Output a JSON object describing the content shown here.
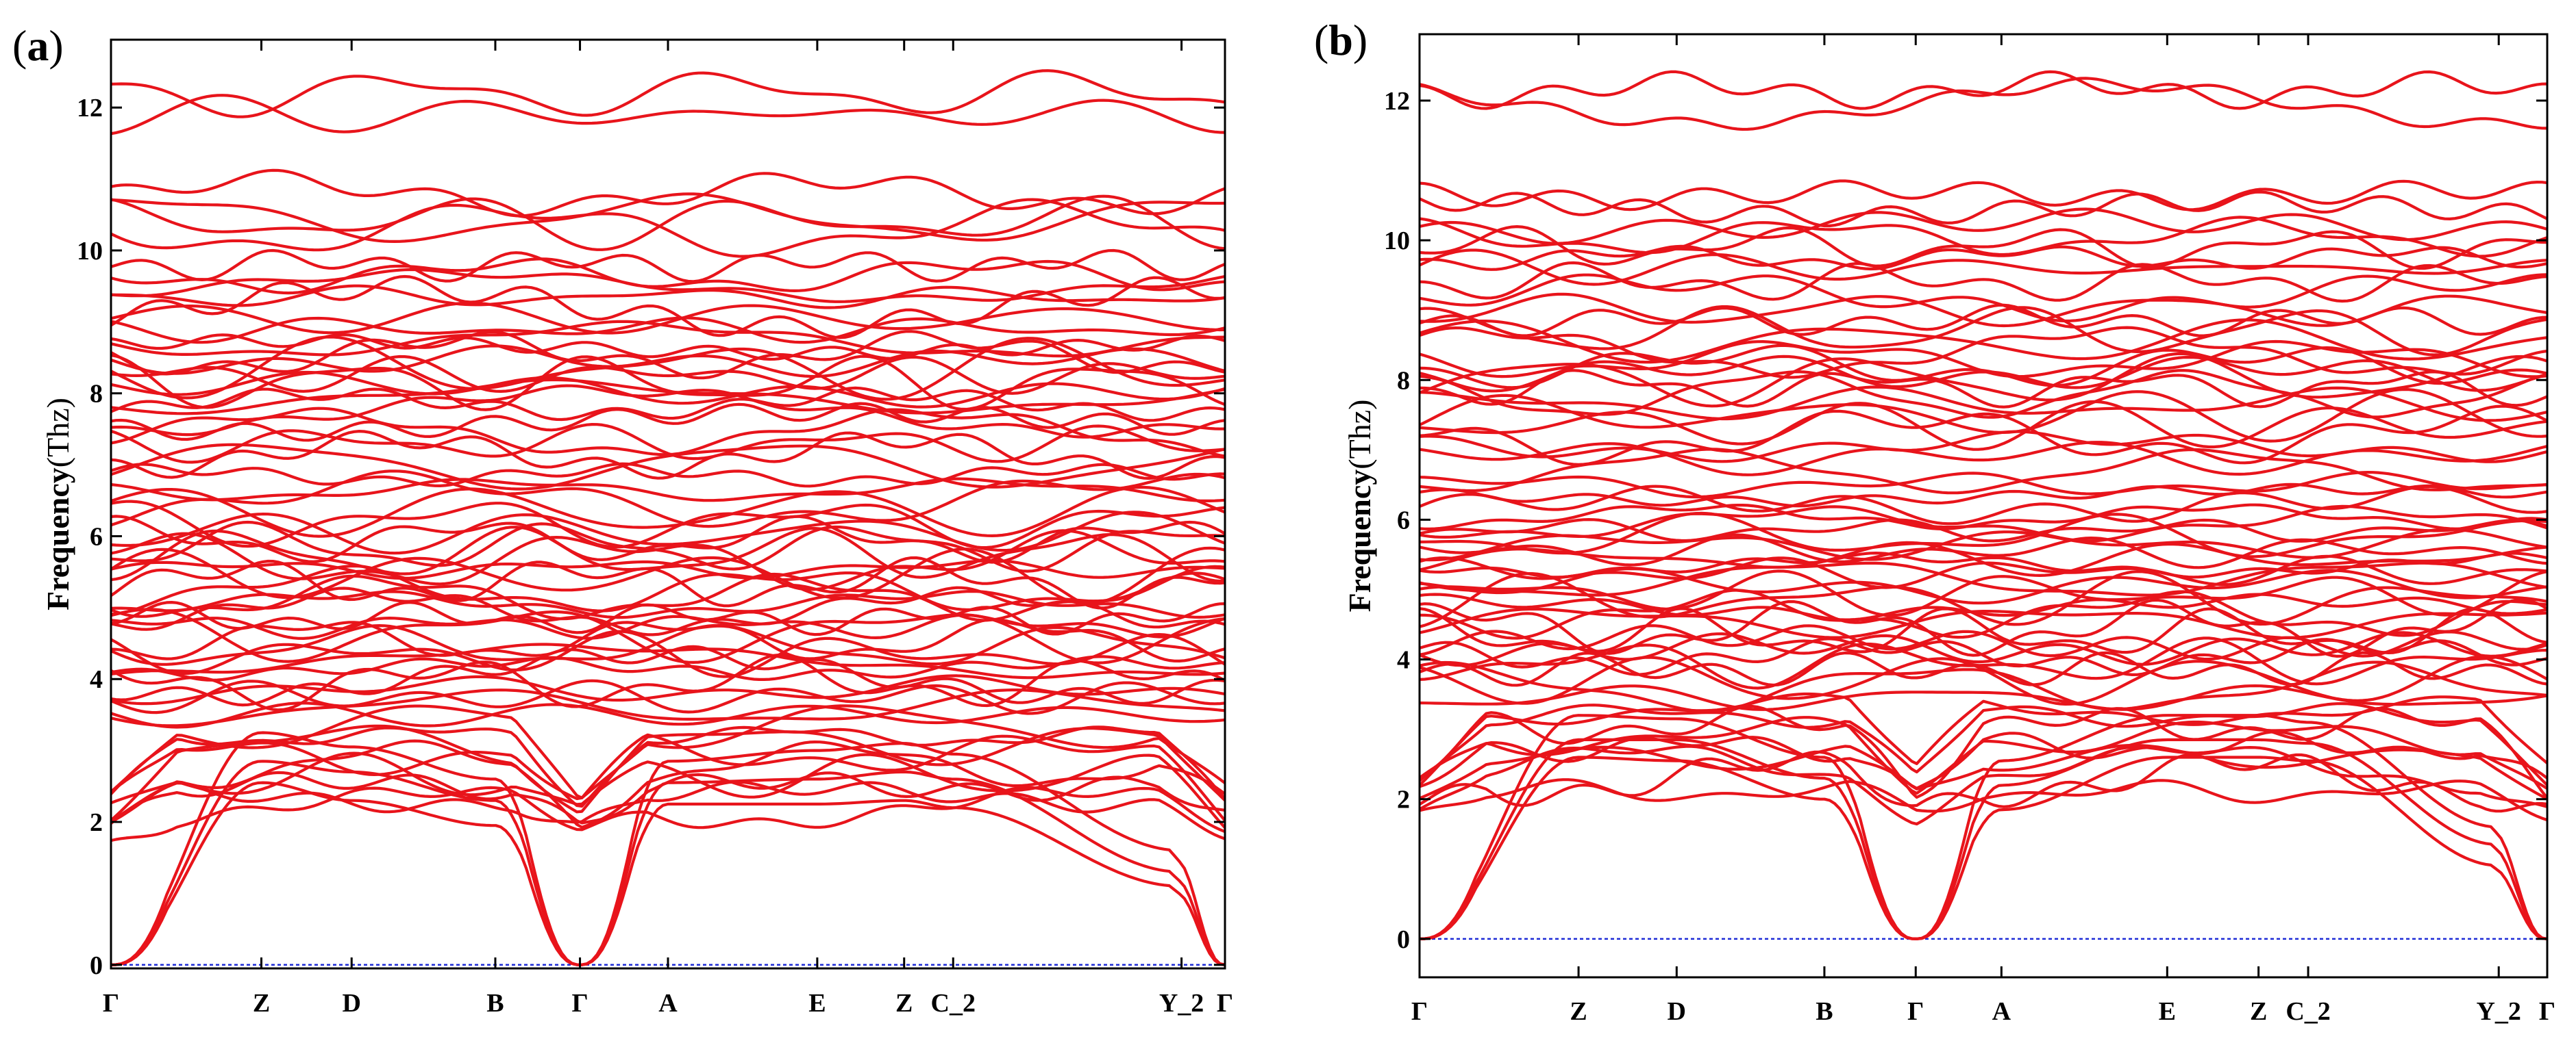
{
  "colors": {
    "band": "#e8141b",
    "zero_line": "#1d2bd6",
    "axis": "#000000"
  },
  "chart_data": [
    {
      "type": "line",
      "panel_label": "(a)",
      "panel_letter": "a",
      "title": "",
      "xlabel": "",
      "ylabel": "Frequency",
      "ylabel_unit": "(Thz)",
      "ylim": [
        -0.05,
        12.95
      ],
      "yticks": [
        0,
        2,
        4,
        6,
        8,
        10,
        12
      ],
      "kpoints": [
        {
          "label": "Γ",
          "x": 0.0
        },
        {
          "label": "Z",
          "x": 0.135
        },
        {
          "label": "D",
          "x": 0.216
        },
        {
          "label": "B",
          "x": 0.345
        },
        {
          "label": "Γ",
          "x": 0.421
        },
        {
          "label": "A",
          "x": 0.5
        },
        {
          "label": "E",
          "x": 0.634
        },
        {
          "label": "Z",
          "x": 0.712
        },
        {
          "label": "C_2",
          "x": 0.756
        },
        {
          "label": "Y_2",
          "x": 0.961
        },
        {
          "label": "Γ",
          "x": 1.0
        }
      ],
      "band_count": 82,
      "acoustic_at_kpoint": [
        [
          0.0,
          2.55,
          2.3,
          1.95,
          0.0,
          2.25,
          2.25,
          2.3,
          2.2,
          1.1,
          0.0
        ],
        [
          0.0,
          2.85,
          2.7,
          2.3,
          0.0,
          2.55,
          2.6,
          2.7,
          2.6,
          1.3,
          0.0
        ],
        [
          0.0,
          3.25,
          3.05,
          2.6,
          0.0,
          2.85,
          3.0,
          3.1,
          2.95,
          1.6,
          0.0
        ]
      ],
      "optical_band_levels": [
        2.2,
        2.35,
        2.5,
        2.65,
        2.8,
        2.95,
        3.1,
        3.2,
        3.35,
        3.5,
        3.6,
        3.75,
        3.85,
        3.95,
        4.05,
        4.15,
        4.25,
        4.35,
        4.45,
        4.55,
        4.65,
        4.75,
        4.85,
        4.95,
        5.05,
        5.15,
        5.25,
        5.35,
        5.45,
        5.55,
        5.65,
        5.75,
        5.85,
        5.95,
        6.05,
        6.2,
        6.35,
        6.5,
        6.65,
        6.85,
        7.0,
        7.15,
        7.3,
        7.45,
        7.6,
        7.75,
        7.85,
        7.95,
        8.05,
        8.15,
        8.25,
        8.35,
        8.45,
        8.55,
        8.65,
        8.75,
        8.9,
        9.05,
        9.2,
        9.35,
        9.5,
        9.65,
        9.8,
        10.3,
        10.4,
        10.45,
        10.8,
        11.9,
        12.2
      ]
    },
    {
      "type": "line",
      "panel_label": "(b)",
      "panel_letter": "b",
      "title": "",
      "xlabel": "",
      "ylabel": "Frequency",
      "ylabel_unit": "(Thz)",
      "ylim": [
        -0.55,
        12.95
      ],
      "yticks": [
        0,
        2,
        4,
        6,
        8,
        10,
        12
      ],
      "kpoints": [
        {
          "label": "Γ",
          "x": 0.0
        },
        {
          "label": "Z",
          "x": 0.141
        },
        {
          "label": "D",
          "x": 0.228
        },
        {
          "label": "B",
          "x": 0.359
        },
        {
          "label": "Γ",
          "x": 0.44
        },
        {
          "label": "A",
          "x": 0.516
        },
        {
          "label": "E",
          "x": 0.663
        },
        {
          "label": "Z",
          "x": 0.744
        },
        {
          "label": "C_2",
          "x": 0.788
        },
        {
          "label": "Y_2",
          "x": 0.957
        },
        {
          "label": "Γ",
          "x": 1.0
        }
      ],
      "band_count": 82,
      "acoustic_at_kpoint": [
        [
          0.0,
          2.6,
          2.55,
          2.0,
          0.0,
          1.85,
          2.6,
          2.6,
          2.55,
          1.05,
          0.0
        ],
        [
          0.0,
          2.85,
          2.85,
          2.3,
          0.0,
          2.2,
          2.85,
          2.85,
          2.8,
          1.35,
          0.0
        ],
        [
          0.0,
          3.2,
          3.15,
          2.6,
          0.0,
          2.55,
          3.2,
          3.2,
          3.1,
          1.6,
          0.0
        ]
      ],
      "optical_band_levels": [
        2.1,
        2.3,
        2.45,
        2.6,
        2.75,
        2.9,
        3.05,
        3.2,
        3.3,
        3.45,
        3.6,
        3.7,
        3.85,
        3.95,
        4.05,
        4.15,
        4.25,
        4.35,
        4.45,
        4.55,
        4.65,
        4.75,
        4.85,
        4.95,
        5.05,
        5.15,
        5.25,
        5.35,
        5.45,
        5.55,
        5.65,
        5.75,
        5.85,
        5.95,
        6.05,
        6.2,
        6.35,
        6.5,
        6.7,
        6.9,
        7.05,
        7.2,
        7.35,
        7.5,
        7.65,
        7.8,
        7.9,
        8.0,
        8.1,
        8.2,
        8.3,
        8.4,
        8.55,
        8.7,
        8.85,
        9.0,
        9.2,
        9.4,
        9.6,
        9.75,
        9.9,
        10.05,
        10.2,
        10.45,
        10.65,
        11.95,
        12.15
      ]
    }
  ]
}
